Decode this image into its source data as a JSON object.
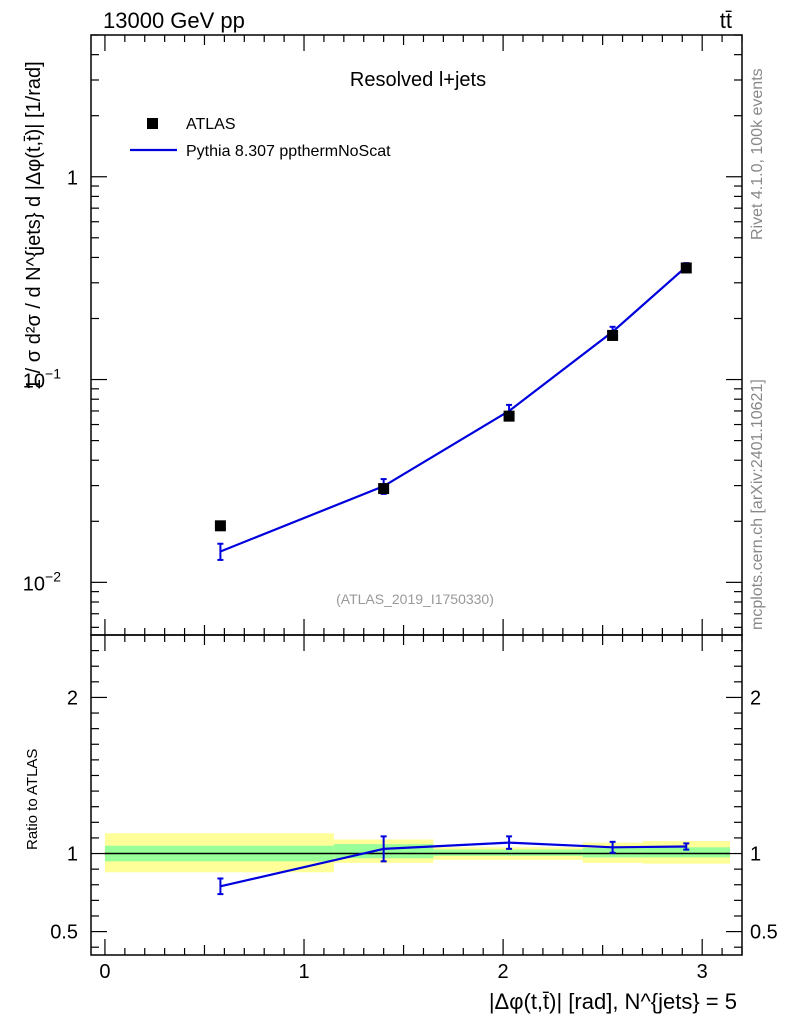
{
  "header": {
    "energy_label": "13000 GeV pp",
    "process_label": "tt̄"
  },
  "side_labels": {
    "rivet": "Rivet 4.1.0,  100k events",
    "mcplots": "mcplots.cern.ch [arXiv:2401.10621]"
  },
  "chart_data": [
    {
      "type": "line",
      "panel": "main",
      "title": "Resolved l+jets",
      "watermark": "(ATLAS_2019_I1750330)",
      "ylabel": "1 / σ d²σ / d N^{jets} d |Δφ(t,t̄)| [1/rad]",
      "yscale": "log",
      "xlim": [
        -0.07,
        3.2
      ],
      "ylim": [
        0.0055,
        5.0
      ],
      "ytick_labels": [
        {
          "value": 0.01,
          "base": "10",
          "exp": "−2"
        },
        {
          "value": 0.1,
          "base": "10",
          "exp": "−1"
        },
        {
          "value": 1,
          "base": "1",
          "exp": ""
        }
      ],
      "legend": [
        "ATLAS",
        "Pythia 8.307 ppthermNoScat"
      ],
      "series": [
        {
          "name": "ATLAS",
          "style": "markers",
          "color": "#000000",
          "x": [
            0.58,
            1.4,
            2.03,
            2.55,
            2.92
          ],
          "y": [
            0.019,
            0.029,
            0.066,
            0.165,
            0.355
          ]
        },
        {
          "name": "Pythia 8.307 ppthermNoScat",
          "style": "line",
          "color": "#0000dd",
          "x": [
            0.58,
            1.4,
            2.03,
            2.55,
            2.92
          ],
          "y": [
            0.0142,
            0.0298,
            0.07,
            0.172,
            0.36
          ],
          "yerr": [
            0.0013,
            0.0025,
            0.005,
            0.01,
            0.015
          ]
        }
      ]
    },
    {
      "type": "line",
      "panel": "ratio",
      "xlabel": "|Δφ(t,t̄)| [rad], N^{jets} = 5",
      "ylabel": "Ratio to ATLAS",
      "xlim": [
        -0.07,
        3.2
      ],
      "ylim": [
        0.35,
        2.4
      ],
      "xtick_labels": [
        "0",
        "1",
        "2",
        "3"
      ],
      "ytick_labels": [
        "0.5",
        "1",
        "2"
      ],
      "uncertainty_bands": [
        {
          "x_low": 0.0,
          "x_high": 1.15,
          "stat_low": 0.95,
          "stat_high": 1.05,
          "total_low": 0.88,
          "total_high": 1.13
        },
        {
          "x_low": 1.15,
          "x_high": 1.65,
          "stat_low": 0.97,
          "stat_high": 1.06,
          "total_low": 0.94,
          "total_high": 1.09
        },
        {
          "x_low": 1.65,
          "x_high": 2.4,
          "stat_low": 0.985,
          "stat_high": 1.025,
          "total_low": 0.96,
          "total_high": 1.04
        },
        {
          "x_low": 2.4,
          "x_high": 2.7,
          "stat_low": 0.975,
          "stat_high": 1.035,
          "total_low": 0.94,
          "total_high": 1.07
        },
        {
          "x_low": 2.7,
          "x_high": 3.14,
          "stat_low": 0.975,
          "stat_high": 1.04,
          "total_low": 0.935,
          "total_high": 1.08
        }
      ],
      "series": [
        {
          "name": "Pythia 8.307 ppthermNoScat / ATLAS",
          "style": "line",
          "color": "#0000dd",
          "x": [
            0.58,
            1.4,
            2.03,
            2.55,
            2.92
          ],
          "y": [
            0.79,
            1.03,
            1.07,
            1.04,
            1.045
          ],
          "yerr": [
            0.05,
            0.08,
            0.04,
            0.035,
            0.02
          ]
        }
      ],
      "reference_line": 1.0
    }
  ]
}
